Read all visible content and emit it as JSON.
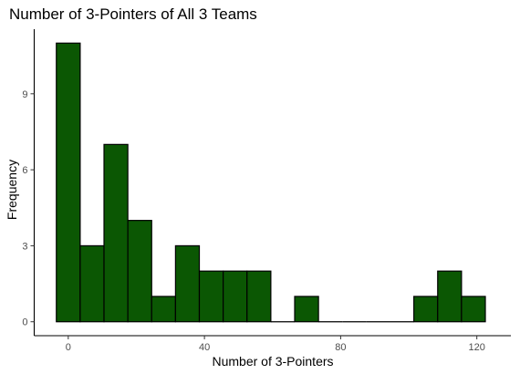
{
  "chart_data": {
    "type": "bar",
    "title": "Number of 3-Pointers of All 3 Teams",
    "xlabel": "Number of 3-Pointers",
    "ylabel": "Frequency",
    "bin_width": 7,
    "bins": [
      {
        "start": -3.5,
        "end": 3.5,
        "count": 11
      },
      {
        "start": 3.5,
        "end": 10.5,
        "count": 3
      },
      {
        "start": 10.5,
        "end": 17.5,
        "count": 7
      },
      {
        "start": 17.5,
        "end": 24.5,
        "count": 4
      },
      {
        "start": 24.5,
        "end": 31.5,
        "count": 1
      },
      {
        "start": 31.5,
        "end": 38.5,
        "count": 3
      },
      {
        "start": 38.5,
        "end": 45.5,
        "count": 2
      },
      {
        "start": 45.5,
        "end": 52.5,
        "count": 2
      },
      {
        "start": 52.5,
        "end": 59.5,
        "count": 2
      },
      {
        "start": 59.5,
        "end": 66.5,
        "count": 0
      },
      {
        "start": 66.5,
        "end": 73.5,
        "count": 1
      },
      {
        "start": 73.5,
        "end": 80.5,
        "count": 0
      },
      {
        "start": 80.5,
        "end": 87.5,
        "count": 0
      },
      {
        "start": 87.5,
        "end": 94.5,
        "count": 0
      },
      {
        "start": 94.5,
        "end": 101.5,
        "count": 0
      },
      {
        "start": 101.5,
        "end": 108.5,
        "count": 1
      },
      {
        "start": 108.5,
        "end": 115.5,
        "count": 2
      },
      {
        "start": 115.5,
        "end": 122.5,
        "count": 1
      }
    ],
    "xlim": [
      -10,
      130
    ],
    "ylim": [
      -0.55,
      11.55
    ],
    "x_ticks": [
      0,
      40,
      80,
      120
    ],
    "y_ticks": [
      0,
      3,
      6,
      9
    ],
    "grid": false,
    "bar_fill": "#0b5703",
    "bar_outline": "#000000"
  }
}
